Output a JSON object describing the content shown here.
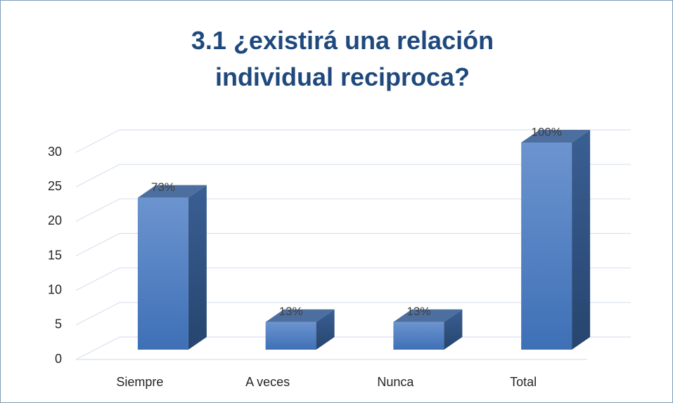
{
  "chart_data": {
    "type": "bar3d",
    "title": "3.1 ¿existirá una relación individual reciproca?",
    "categories": [
      "Siempre",
      "A veces",
      "Nunca",
      "Total"
    ],
    "values": [
      22,
      4,
      4,
      30
    ],
    "value_labels": [
      "73%",
      "13%",
      "13%",
      "100%"
    ],
    "color": "#4f81bd",
    "ylim": [
      0,
      30
    ],
    "yticks": [
      0,
      5,
      10,
      15,
      20,
      25,
      30
    ],
    "grid": true
  }
}
